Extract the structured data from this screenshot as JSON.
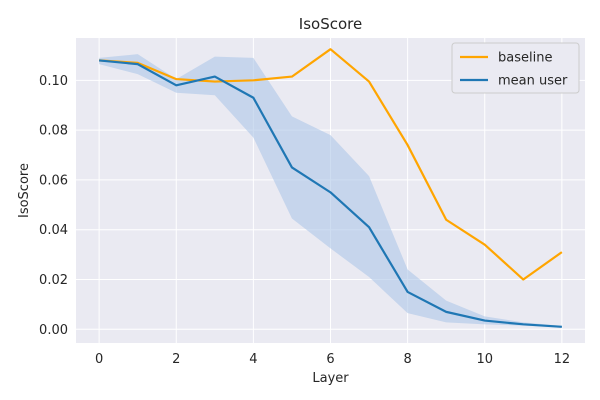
{
  "chart_data": {
    "type": "line",
    "title": "IsoScore",
    "xlabel": "Layer",
    "ylabel": "IsoScore",
    "xlim": [
      -0.6,
      12.6
    ],
    "ylim": [
      -0.0055,
      0.117
    ],
    "xticks": [
      0,
      2,
      4,
      6,
      8,
      10,
      12
    ],
    "yticks": [
      0.0,
      0.02,
      0.04,
      0.06,
      0.08,
      0.1
    ],
    "ytick_labels": [
      "0.00",
      "0.02",
      "0.04",
      "0.06",
      "0.08",
      "0.10"
    ],
    "grid": true,
    "legend_position": "top-right",
    "x": [
      0,
      1,
      2,
      3,
      4,
      5,
      6,
      7,
      8,
      9,
      10,
      11,
      12
    ],
    "series": [
      {
        "name": "baseline",
        "color": "#ffa500",
        "values": [
          0.108,
          0.107,
          0.1005,
          0.0995,
          0.1,
          0.1015,
          0.1125,
          0.0995,
          0.074,
          0.044,
          0.034,
          0.02,
          0.031
        ]
      },
      {
        "name": "mean user",
        "color": "#1f77b4",
        "values": [
          0.108,
          0.1065,
          0.098,
          0.1015,
          0.093,
          0.065,
          0.055,
          0.041,
          0.015,
          0.007,
          0.0035,
          0.002,
          0.001
        ],
        "band_upper": [
          0.109,
          0.1105,
          0.1005,
          0.1095,
          0.109,
          0.0855,
          0.078,
          0.0615,
          0.024,
          0.0115,
          0.0052,
          0.0028,
          0.0014
        ],
        "band_lower": [
          0.1065,
          0.1025,
          0.095,
          0.094,
          0.077,
          0.0445,
          0.0325,
          0.021,
          0.0065,
          0.0028,
          0.002,
          0.0015,
          0.0008
        ],
        "band_color": "#aec7e8"
      }
    ]
  }
}
